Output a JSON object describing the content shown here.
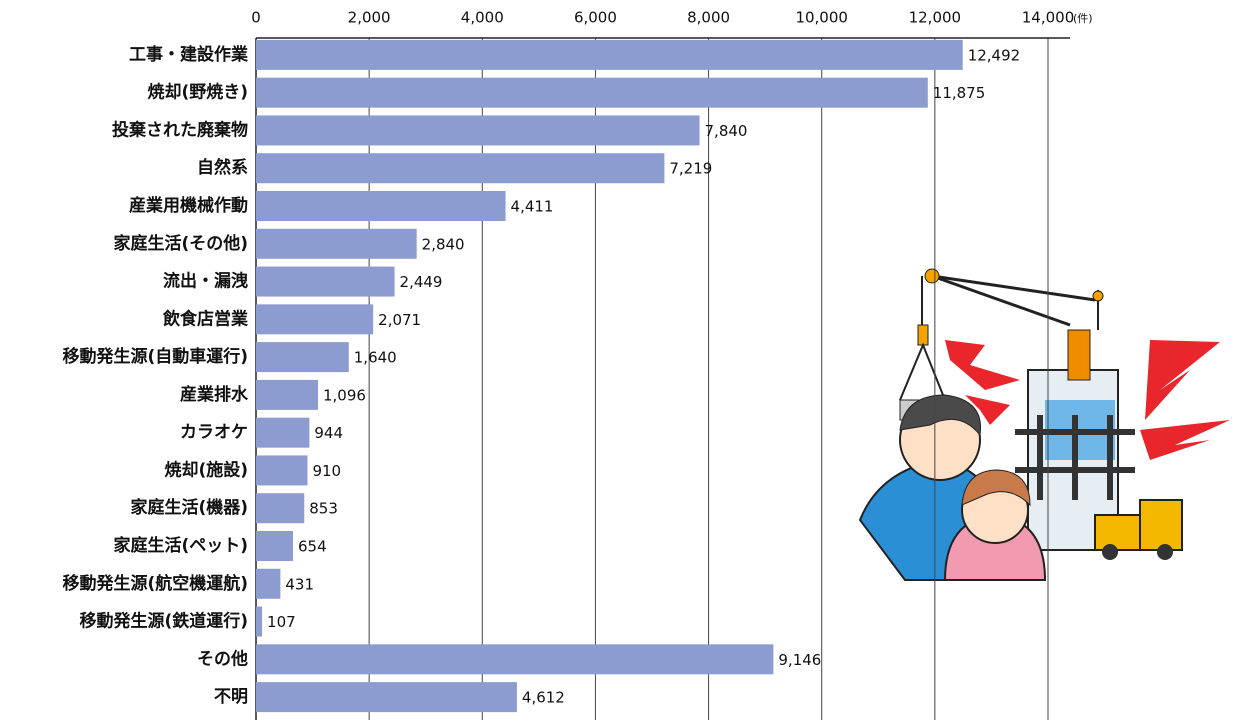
{
  "chart_data": {
    "type": "hbar",
    "unit": "(件)",
    "categories": [
      "工事・建設作業",
      "焼却(野焼き)",
      "投棄された廃棄物",
      "自然系",
      "産業用機械作動",
      "家庭生活(その他)",
      "流出・漏洩",
      "飲食店営業",
      "移動発生源(自動車運行)",
      "産業排水",
      "カラオケ",
      "焼却(施設)",
      "家庭生活(機器)",
      "家庭生活(ペット)",
      "移動発生源(航空機運航)",
      "移動発生源(鉄道運行)",
      "その他",
      "不明"
    ],
    "values": [
      12492,
      11875,
      7840,
      7219,
      4411,
      2840,
      2449,
      2071,
      1640,
      1096,
      944,
      910,
      853,
      654,
      431,
      107,
      9146,
      4612
    ],
    "value_labels": [
      "12,492",
      "11,875",
      "7,840",
      "7,219",
      "4,411",
      "2,840",
      "2,449",
      "2,071",
      "1,640",
      "1,096",
      "944",
      "910",
      "853",
      "654",
      "431",
      "107",
      "9,146",
      "4,612"
    ],
    "color": "#8c9bd0",
    "xlim": [
      0,
      14000
    ],
    "xticks": [
      0,
      {
        "value": 2000,
        "label": "2,000"
      },
      {
        "value": 4000,
        "label": "4,000"
      },
      {
        "value": 6000,
        "label": "6,000"
      },
      {
        "value": 8000,
        "label": "8,000"
      },
      {
        "value": 10000,
        "label": "10,000"
      },
      {
        "value": 12000,
        "label": "12,000"
      },
      {
        "value": 14000,
        "label": "14,000"
      }
    ],
    "grid": true
  }
}
